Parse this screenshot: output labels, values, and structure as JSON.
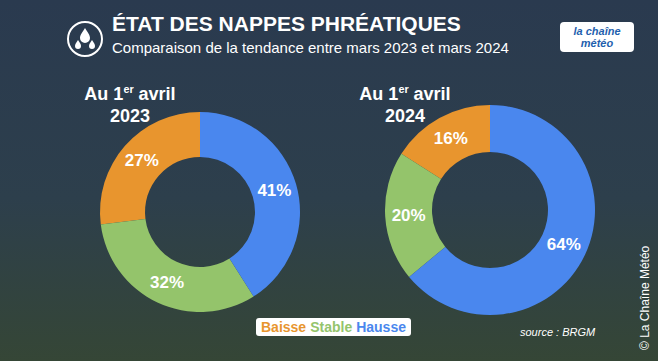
{
  "title": "ÉTAT DES NAPPES PHRÉATIQUES",
  "subtitle": "Comparaison de la tendance entre mars 2023 et mars 2024",
  "logo": "la chaîne météo",
  "source": "source : BRGM",
  "credit": "© La Chaîne Météo",
  "chart_data": [
    {
      "type": "pie",
      "title": "Au 1er avril 2023",
      "categories": [
        "Baisse",
        "Stable",
        "Hausse"
      ],
      "values": [
        27,
        32,
        41
      ],
      "value_labels": [
        "27%",
        "32%",
        "41%"
      ],
      "colors": [
        "#e8952e",
        "#94c46b",
        "#4a87ee"
      ],
      "data_labels": true,
      "legend": "bottom"
    },
    {
      "type": "pie",
      "title": "Au 1er avril 2024",
      "categories": [
        "Baisse",
        "Stable",
        "Hausse"
      ],
      "values": [
        16,
        20,
        64
      ],
      "value_labels": [
        "16%",
        "20%",
        "64%"
      ],
      "colors": [
        "#e8952e",
        "#94c46b",
        "#4a87ee"
      ],
      "data_labels": true,
      "legend": "bottom"
    }
  ]
}
